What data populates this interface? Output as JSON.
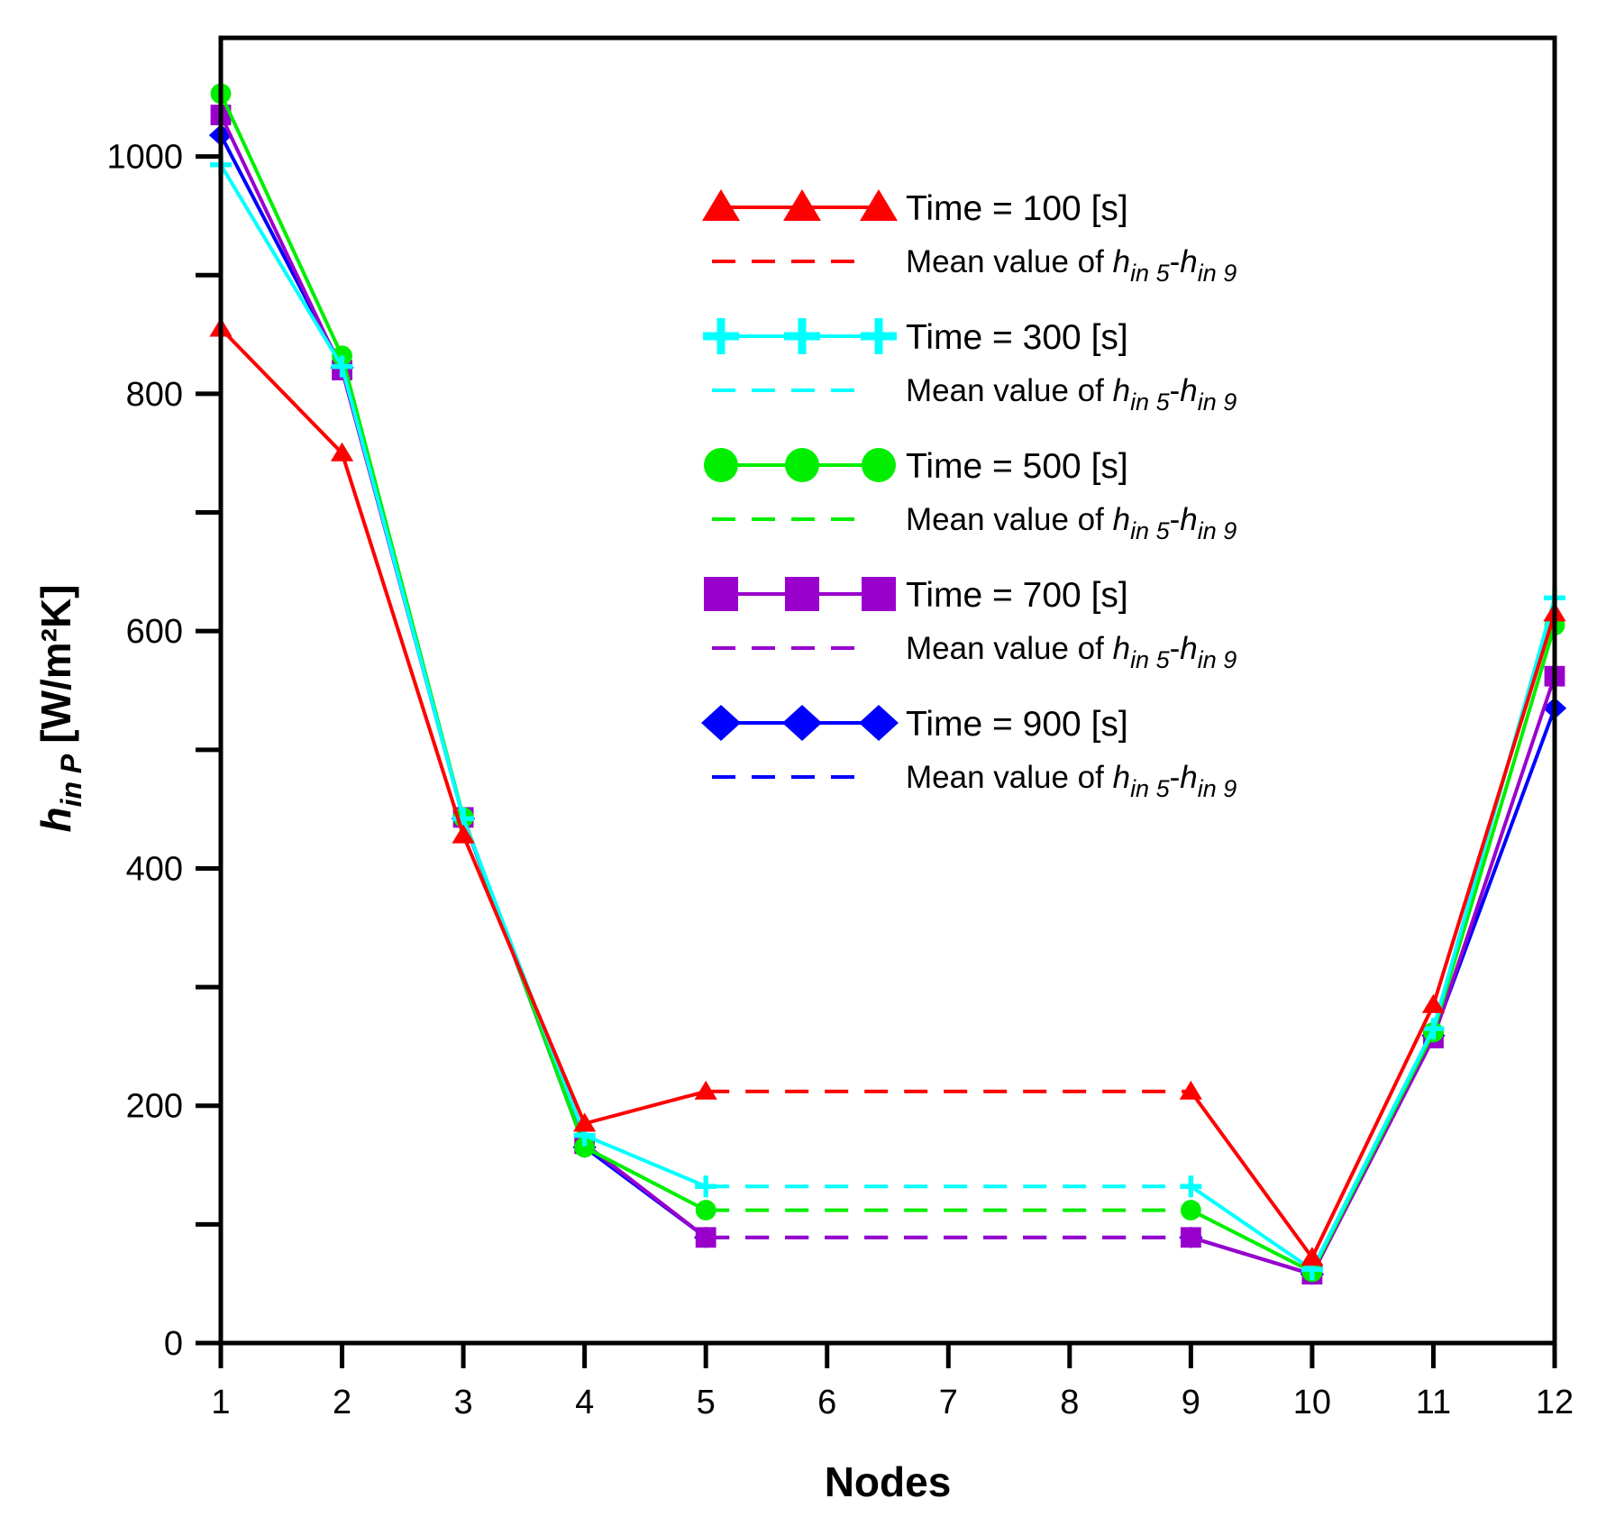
{
  "chart_data": {
    "type": "line",
    "title": "",
    "xlabel": "Nodes",
    "ylabel": {
      "main": "h",
      "sub": "in P",
      "unit": "[W/m²K]"
    },
    "xlim": [
      1,
      12
    ],
    "ylim": [
      0,
      1100
    ],
    "x_ticks": [
      "1",
      "2",
      "3",
      "4",
      "5",
      "6",
      "7",
      "8",
      "9",
      "10",
      "11",
      "12"
    ],
    "y_ticks": [
      0,
      200,
      400,
      600,
      800,
      1000
    ],
    "y_minor_ticks": [
      100,
      300,
      500,
      700,
      900
    ],
    "nodes": [
      1,
      2,
      3,
      4,
      5,
      9,
      10,
      11,
      12
    ],
    "grid": false,
    "legend_position": "top-right",
    "mean_label": {
      "prefix": "Mean value of ",
      "h1": "h",
      "s1": "in 5",
      "dash": "-",
      "h2": "h",
      "s2": "in 9"
    },
    "series": [
      {
        "name": "Time = 100 [s]",
        "color": "#ff0000",
        "marker": "triangle",
        "values": [
          855,
          750,
          428,
          185,
          212,
          212,
          72,
          285,
          615
        ],
        "mean": 212
      },
      {
        "name": "Time = 300 [s]",
        "color": "#00ffff",
        "marker": "plus",
        "values": [
          993,
          823,
          442,
          175,
          132,
          132,
          62,
          265,
          628
        ],
        "mean": 132
      },
      {
        "name": "Time = 500 [s]",
        "color": "#00ee00",
        "marker": "circle",
        "values": [
          1053,
          832,
          443,
          165,
          112,
          112,
          60,
          262,
          605
        ],
        "mean": 112
      },
      {
        "name": "Time = 700 [s]",
        "color": "#9900cc",
        "marker": "square",
        "values": [
          1035,
          820,
          443,
          168,
          89,
          89,
          58,
          257,
          562
        ],
        "mean": 89
      },
      {
        "name": "Time = 900 [s]",
        "color": "#0000ff",
        "marker": "diamond",
        "values": [
          1018,
          822,
          442,
          165,
          89,
          89,
          58,
          259,
          535
        ],
        "mean": 89
      }
    ]
  }
}
